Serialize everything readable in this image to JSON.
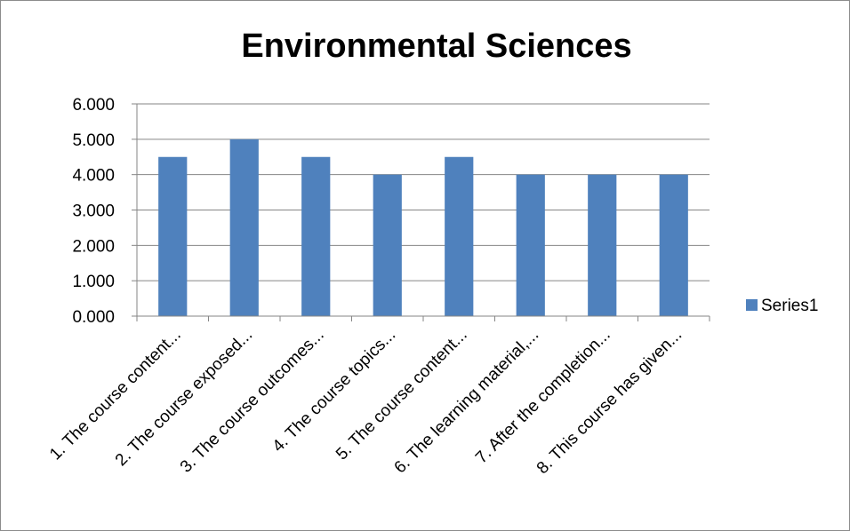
{
  "chart_data": {
    "type": "bar",
    "title": "Environmental Sciences",
    "xlabel": "",
    "ylabel": "",
    "categories": [
      "1. The course content...",
      "2. The course exposed...",
      "3. The course outcomes...",
      "4. The course topics...",
      "5. The course content...",
      "6. The learning material,...",
      "7. After the completion...",
      "8. This course has given..."
    ],
    "series": [
      {
        "name": "Series1",
        "values": [
          4.5,
          5.0,
          4.5,
          4.0,
          4.5,
          4.0,
          4.0,
          4.0
        ],
        "color": "#4f81bd"
      }
    ],
    "ylim": [
      0,
      6
    ],
    "yticks": [
      "0.000",
      "1.000",
      "2.000",
      "3.000",
      "4.000",
      "5.000",
      "6.000"
    ],
    "grid": true,
    "legend_position": "right"
  }
}
